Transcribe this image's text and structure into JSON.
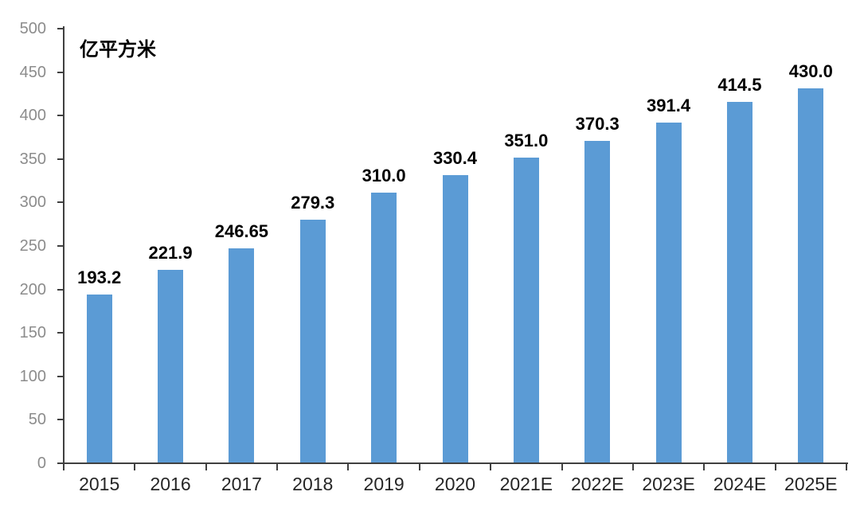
{
  "chart_data": {
    "type": "bar",
    "title": "",
    "unit_label": "亿平方米",
    "xlabel": "",
    "ylabel": "",
    "categories": [
      "2015",
      "2016",
      "2017",
      "2018",
      "2019",
      "2020",
      "2021E",
      "2022E",
      "2023E",
      "2024E",
      "2025E"
    ],
    "values": [
      193.2,
      221.9,
      246.65,
      279.3,
      310.0,
      330.4,
      351.0,
      370.3,
      391.4,
      414.5,
      430.0
    ],
    "value_labels": [
      "193.2",
      "221.9",
      "246.65",
      "279.3",
      "310.0",
      "330.4",
      "351.0",
      "370.3",
      "391.4",
      "414.5",
      "430.0"
    ],
    "ylim": [
      0,
      500
    ],
    "yticks": [
      0,
      50,
      100,
      150,
      200,
      250,
      300,
      350,
      400,
      450,
      500
    ],
    "grid": false,
    "legend": null,
    "colors": {
      "bar": "#5B9BD5",
      "axis": "#404040",
      "y_tick_label": "#8c8c8c",
      "x_tick_label": "#262626",
      "data_label": "#000000",
      "background": "#ffffff"
    }
  }
}
